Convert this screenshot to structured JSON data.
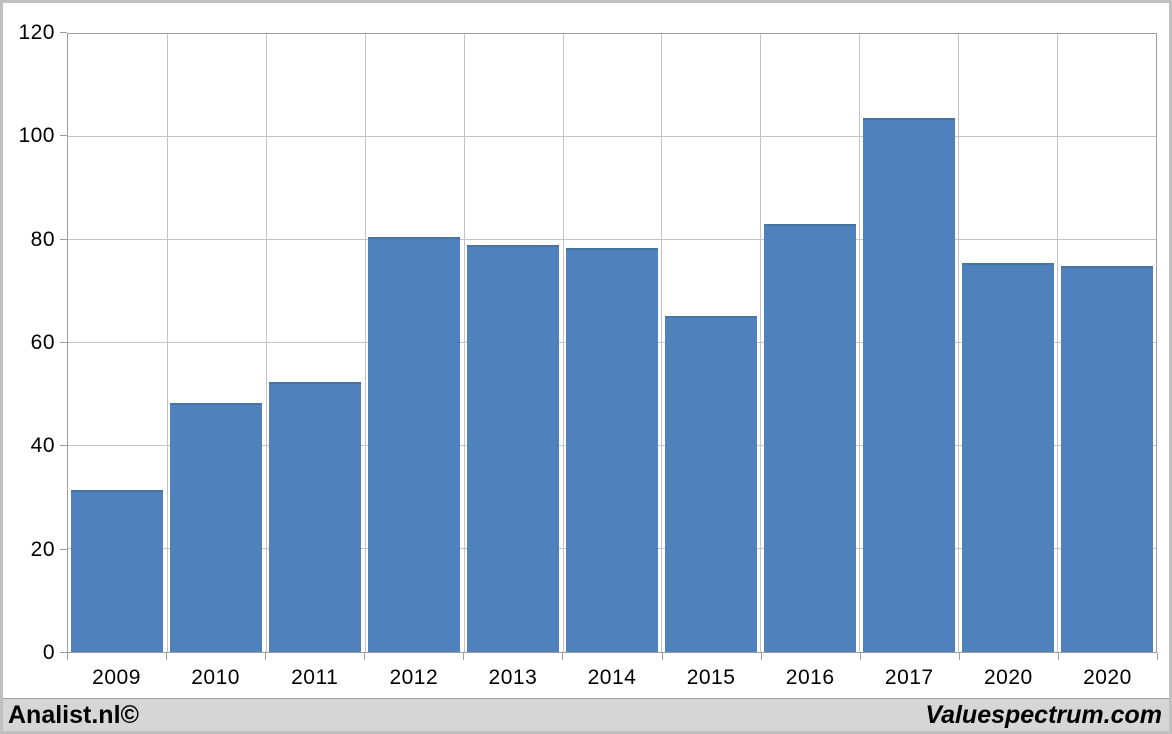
{
  "footer": {
    "left_brand": "Analist.nl©",
    "right_brand": "Valuespectrum.com"
  },
  "chart_data": {
    "type": "bar",
    "categories": [
      "2009",
      "2010",
      "2011",
      "2012",
      "2013",
      "2014",
      "2015",
      "2016",
      "2017",
      "2020",
      "2020"
    ],
    "values": [
      31.5,
      48.4,
      52.5,
      80.5,
      79.0,
      78.5,
      65.3,
      83.1,
      103.6,
      75.5,
      75.0
    ],
    "title": "",
    "xlabel": "",
    "ylabel": "",
    "ylim": [
      0,
      120
    ],
    "yticks": [
      0,
      20,
      40,
      60,
      80,
      100,
      120
    ],
    "grid": true,
    "legend_position": "none",
    "bar_color": "#4f81bd",
    "bar_edge_color": "#48759f",
    "gridline_color": "#c4c4c4",
    "axis_color": "#9d9d9d",
    "label_color": "#000000"
  },
  "colors": {
    "frame": "#c0c0c0",
    "chart_bg": "#ffffff",
    "footer_bg": "#d6d6d6",
    "footer_border": "#9e9e9e"
  }
}
